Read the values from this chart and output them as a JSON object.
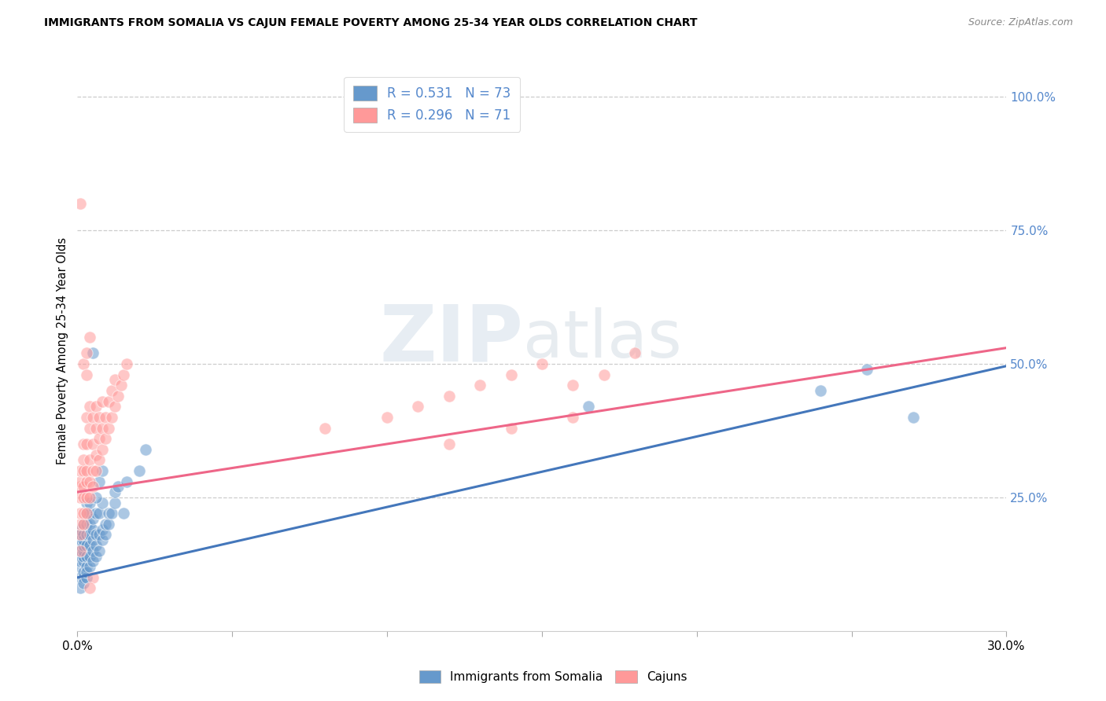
{
  "title": "IMMIGRANTS FROM SOMALIA VS CAJUN FEMALE POVERTY AMONG 25-34 YEAR OLDS CORRELATION CHART",
  "source": "Source: ZipAtlas.com",
  "ylabel": "Female Poverty Among 25-34 Year Olds",
  "xlim": [
    0.0,
    0.3
  ],
  "ylim": [
    0.0,
    1.05
  ],
  "xticks": [
    0.0,
    0.05,
    0.1,
    0.15,
    0.2,
    0.25,
    0.3
  ],
  "xtick_labels": [
    "0.0%",
    "",
    "",
    "",
    "",
    "",
    "30.0%"
  ],
  "yticks_right": [
    0.25,
    0.5,
    0.75,
    1.0
  ],
  "ytick_right_labels": [
    "25.0%",
    "50.0%",
    "75.0%",
    "100.0%"
  ],
  "blue_color": "#6699CC",
  "pink_color": "#FF9999",
  "blue_line_color": "#4477BB",
  "pink_line_color": "#EE6688",
  "blue_intercept": 0.1,
  "blue_slope": 1.32,
  "pink_intercept": 0.26,
  "pink_slope": 0.9,
  "somalia_x": [
    0.001,
    0.001,
    0.001,
    0.001,
    0.001,
    0.001,
    0.001,
    0.001,
    0.001,
    0.001,
    0.002,
    0.002,
    0.002,
    0.002,
    0.002,
    0.002,
    0.002,
    0.002,
    0.002,
    0.002,
    0.003,
    0.003,
    0.003,
    0.003,
    0.003,
    0.003,
    0.003,
    0.003,
    0.003,
    0.004,
    0.004,
    0.004,
    0.004,
    0.004,
    0.004,
    0.004,
    0.005,
    0.005,
    0.005,
    0.005,
    0.005,
    0.006,
    0.006,
    0.006,
    0.006,
    0.007,
    0.007,
    0.007,
    0.008,
    0.008,
    0.008,
    0.009,
    0.009,
    0.01,
    0.01,
    0.011,
    0.012,
    0.012,
    0.013,
    0.015,
    0.016,
    0.02,
    0.022,
    0.165,
    0.24,
    0.255,
    0.27,
    0.005,
    0.006,
    0.007,
    0.008
  ],
  "somalia_y": [
    0.1,
    0.12,
    0.13,
    0.14,
    0.15,
    0.16,
    0.17,
    0.18,
    0.19,
    0.08,
    0.1,
    0.11,
    0.13,
    0.14,
    0.15,
    0.16,
    0.17,
    0.18,
    0.2,
    0.09,
    0.1,
    0.12,
    0.14,
    0.16,
    0.18,
    0.2,
    0.22,
    0.24,
    0.11,
    0.12,
    0.14,
    0.16,
    0.18,
    0.2,
    0.22,
    0.24,
    0.13,
    0.15,
    0.17,
    0.19,
    0.21,
    0.14,
    0.16,
    0.18,
    0.22,
    0.15,
    0.18,
    0.22,
    0.17,
    0.19,
    0.24,
    0.18,
    0.2,
    0.2,
    0.22,
    0.22,
    0.24,
    0.26,
    0.27,
    0.22,
    0.28,
    0.3,
    0.34,
    0.42,
    0.45,
    0.49,
    0.4,
    0.52,
    0.25,
    0.28,
    0.3
  ],
  "cajun_x": [
    0.001,
    0.001,
    0.001,
    0.001,
    0.001,
    0.001,
    0.001,
    0.001,
    0.002,
    0.002,
    0.002,
    0.002,
    0.002,
    0.002,
    0.002,
    0.003,
    0.003,
    0.003,
    0.003,
    0.003,
    0.003,
    0.004,
    0.004,
    0.004,
    0.004,
    0.004,
    0.005,
    0.005,
    0.005,
    0.005,
    0.006,
    0.006,
    0.006,
    0.006,
    0.007,
    0.007,
    0.007,
    0.008,
    0.008,
    0.008,
    0.009,
    0.009,
    0.01,
    0.01,
    0.011,
    0.011,
    0.012,
    0.012,
    0.013,
    0.014,
    0.015,
    0.016,
    0.08,
    0.1,
    0.11,
    0.12,
    0.12,
    0.13,
    0.14,
    0.14,
    0.15,
    0.16,
    0.16,
    0.17,
    0.18,
    0.001,
    0.002,
    0.003,
    0.003,
    0.004,
    0.005,
    0.004
  ],
  "cajun_y": [
    0.15,
    0.18,
    0.2,
    0.22,
    0.25,
    0.27,
    0.28,
    0.3,
    0.2,
    0.22,
    0.25,
    0.27,
    0.3,
    0.32,
    0.35,
    0.22,
    0.25,
    0.28,
    0.3,
    0.35,
    0.4,
    0.25,
    0.28,
    0.32,
    0.38,
    0.42,
    0.27,
    0.3,
    0.35,
    0.4,
    0.3,
    0.33,
    0.38,
    0.42,
    0.32,
    0.36,
    0.4,
    0.34,
    0.38,
    0.43,
    0.36,
    0.4,
    0.38,
    0.43,
    0.4,
    0.45,
    0.42,
    0.47,
    0.44,
    0.46,
    0.48,
    0.5,
    0.38,
    0.4,
    0.42,
    0.44,
    0.35,
    0.46,
    0.48,
    0.38,
    0.5,
    0.46,
    0.4,
    0.48,
    0.52,
    0.8,
    0.5,
    0.52,
    0.48,
    0.55,
    0.1,
    0.08
  ],
  "watermark_zip": "ZIP",
  "watermark_atlas": "atlas",
  "background_color": "#FFFFFF",
  "grid_color": "#CCCCCC"
}
